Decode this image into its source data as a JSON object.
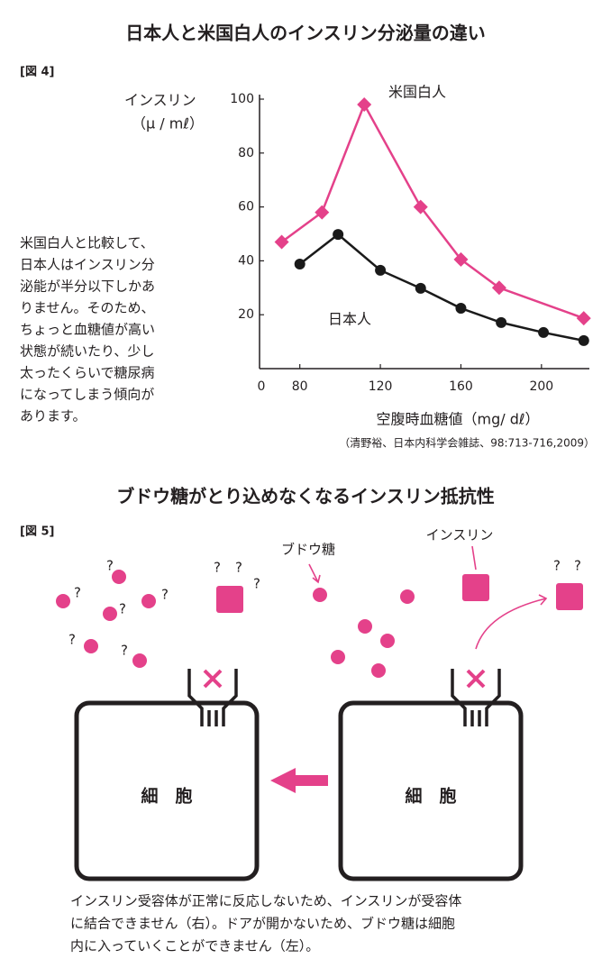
{
  "chart_data": {
    "type": "line",
    "title": "日本人と米国白人のインスリン分泌量の違い",
    "figure_label": "[図 4]",
    "y_label": "インスリン",
    "y_unit": "（μ / mℓ）",
    "x_label": "空腹時血糖値（mg/ dℓ）",
    "source": "（清野裕、日本内科学会雑誌、98:713-716,2009）",
    "xlim": [
      60,
      222
    ],
    "ylim": [
      0,
      100
    ],
    "xticks": [
      80,
      120,
      160,
      200
    ],
    "yticks": [
      0,
      20,
      40,
      60,
      80,
      100
    ],
    "series": [
      {
        "name": "米国白人",
        "color": "#e4418a",
        "marker": "diamond",
        "x": [
          71,
          91,
          112,
          140,
          160,
          179,
          221
        ],
        "values": [
          47,
          58,
          98,
          60,
          40.5,
          30,
          18.7
        ]
      },
      {
        "name": "日本人",
        "color": "#1a1a1a",
        "marker": "circle",
        "x": [
          80,
          99,
          120,
          140,
          160,
          180,
          201,
          221
        ],
        "values": [
          38.8,
          49.8,
          36.5,
          29.8,
          22.4,
          17.1,
          13.4,
          10.4
        ]
      }
    ]
  },
  "description": {
    "lines": [
      "米国白人と比較して、",
      "日本人はインスリン分",
      "泌能が半分以下しかあ",
      "りません。そのため、",
      "ちょっと血糖値が高い",
      "状態が続いたり、少し",
      "太ったくらいで糖尿病",
      "になってしまう傾向が",
      "あります。"
    ]
  },
  "diagram": {
    "title": "ブドウ糖がとり込めなくなるインスリン抵抗性",
    "figure_label": "[図 5]",
    "glucose_label": "ブドウ糖",
    "insulin_label": "インスリン",
    "cell_labels": [
      "細　胞",
      "細　胞"
    ],
    "question_marks": [
      "?",
      "?",
      "?",
      "?",
      "?",
      "?",
      "?",
      "?",
      "?",
      "?",
      "?"
    ],
    "caption": [
      "インスリン受容体が正常に反応しないため、インスリンが受容体",
      "に結合できません（右）。ドアが開かないため、ブドウ糖は細胞",
      "内に入っていくことができません（左）。"
    ]
  }
}
